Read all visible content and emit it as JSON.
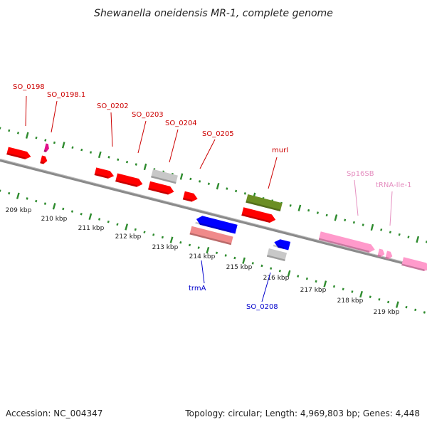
{
  "title": "Shewanella oneidensis MR-1, complete genome",
  "footer": {
    "accession": "Accession: NC_004347",
    "summary": "Topology: circular; Length: 4,969,803 bp; Genes: 4,448"
  },
  "colors": {
    "backbone": "#8a8a8a",
    "tick_green": "#2e8b2e",
    "red_gene": "#ff0000",
    "red_label": "#cc0000",
    "blue_gene": "#0000ff",
    "blue_label": "#0000cc",
    "pink_gene": "#ff9acb",
    "pink_label": "#e58fc0",
    "magenta_gene": "#e0108a",
    "salmon_gene": "#f08a8a",
    "grey_gene": "#c8c8c8",
    "olive_gene": "#6b8e23"
  },
  "kbp_ticks": [
    "209 kbp",
    "210 kbp",
    "211 kbp",
    "212 kbp",
    "213 kbp",
    "214 kbp",
    "215 kbp",
    "216 kbp",
    "217 kbp",
    "218 kbp",
    "219 kbp"
  ],
  "gene_labels": [
    {
      "id": "SO_0198",
      "text": "SO_0198",
      "color": "red"
    },
    {
      "id": "SO_0198.1",
      "text": "SO_0198.1",
      "color": "red"
    },
    {
      "id": "SO_0202",
      "text": "SO_0202",
      "color": "red"
    },
    {
      "id": "SO_0203",
      "text": "SO_0203",
      "color": "red"
    },
    {
      "id": "SO_0204",
      "text": "SO_0204",
      "color": "red"
    },
    {
      "id": "SO_0205",
      "text": "SO_0205",
      "color": "red"
    },
    {
      "id": "murI",
      "text": "murI",
      "color": "red"
    },
    {
      "id": "Sp16SB",
      "text": "Sp16SB",
      "color": "pink"
    },
    {
      "id": "tRNA-Ile-1",
      "text": "tRNA-Ile-1",
      "color": "pink"
    },
    {
      "id": "trmA",
      "text": "trmA",
      "color": "blue"
    },
    {
      "id": "SO_0208",
      "text": "SO_0208",
      "color": "blue"
    }
  ],
  "genes": [
    {
      "name": "gene-red-1",
      "color": "red",
      "strand": "forward"
    },
    {
      "name": "gene-magenta",
      "color": "magenta",
      "strand": "forward"
    },
    {
      "name": "gene-red-small",
      "color": "red",
      "strand": "forward"
    },
    {
      "name": "gene-red-2",
      "color": "red",
      "strand": "forward"
    },
    {
      "name": "gene-red-3",
      "color": "red",
      "strand": "forward"
    },
    {
      "name": "gene-grey-1",
      "color": "grey",
      "strand": "none"
    },
    {
      "name": "gene-red-4",
      "color": "red",
      "strand": "forward"
    },
    {
      "name": "gene-red-5",
      "color": "red",
      "strand": "forward"
    },
    {
      "name": "gene-olive",
      "color": "olive",
      "strand": "none"
    },
    {
      "name": "gene-red-6",
      "color": "red",
      "strand": "forward"
    },
    {
      "name": "gene-blue-1",
      "color": "blue",
      "strand": "reverse"
    },
    {
      "name": "gene-salmon",
      "color": "salmon",
      "strand": "none"
    },
    {
      "name": "gene-blue-2",
      "color": "blue",
      "strand": "reverse"
    },
    {
      "name": "gene-grey-2",
      "color": "grey",
      "strand": "none"
    },
    {
      "name": "gene-pink-1",
      "color": "pink",
      "strand": "forward"
    },
    {
      "name": "gene-pink-2",
      "color": "pink",
      "strand": "forward"
    },
    {
      "name": "gene-pink-3",
      "color": "pink",
      "strand": "forward"
    },
    {
      "name": "gene-pink-4",
      "color": "pink",
      "strand": "forward"
    }
  ]
}
